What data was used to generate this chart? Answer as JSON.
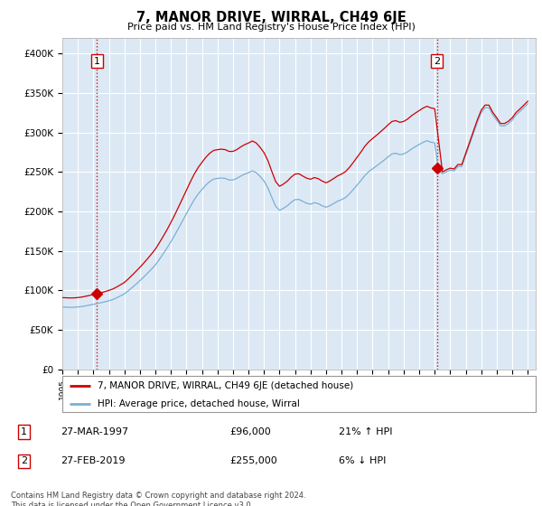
{
  "title": "7, MANOR DRIVE, WIRRAL, CH49 6JE",
  "subtitle": "Price paid vs. HM Land Registry's House Price Index (HPI)",
  "ylabel_ticks": [
    "£0",
    "£50K",
    "£100K",
    "£150K",
    "£200K",
    "£250K",
    "£300K",
    "£350K",
    "£400K"
  ],
  "ytick_values": [
    0,
    50000,
    100000,
    150000,
    200000,
    250000,
    300000,
    350000,
    400000
  ],
  "ylim": [
    0,
    420000
  ],
  "xlim_start": 1995.0,
  "xlim_end": 2025.5,
  "xtick_years": [
    1995,
    1996,
    1997,
    1998,
    1999,
    2000,
    2001,
    2002,
    2003,
    2004,
    2005,
    2006,
    2007,
    2008,
    2009,
    2010,
    2011,
    2012,
    2013,
    2014,
    2015,
    2016,
    2017,
    2018,
    2019,
    2020,
    2021,
    2022,
    2023,
    2024,
    2025
  ],
  "sale1_x": 1997.23,
  "sale1_y": 96000,
  "sale1_label": "1",
  "sale1_date": "27-MAR-1997",
  "sale1_price": "£96,000",
  "sale1_hpi": "21% ↑ HPI",
  "sale2_x": 2019.15,
  "sale2_y": 255000,
  "sale2_label": "2",
  "sale2_date": "27-FEB-2019",
  "sale2_price": "£255,000",
  "sale2_hpi": "6% ↓ HPI",
  "line1_color": "#cc0000",
  "line2_color": "#7bafd4",
  "bg_color": "#dce9f5",
  "grid_color": "#ffffff",
  "sale_marker_color": "#cc0000",
  "vline_color": "#cc0000",
  "legend_text1": "7, MANOR DRIVE, WIRRAL, CH49 6JE (detached house)",
  "legend_text2": "HPI: Average price, detached house, Wirral",
  "footer": "Contains HM Land Registry data © Crown copyright and database right 2024.\nThis data is licensed under the Open Government Licence v3.0.",
  "hpi_index": [
    100.0,
    99.8,
    99.5,
    99.7,
    100.1,
    100.8,
    101.9,
    103.1,
    104.3,
    105.6,
    107.0,
    108.4,
    110.1,
    112.0,
    114.8,
    117.9,
    121.2,
    126.0,
    131.3,
    136.7,
    142.3,
    148.2,
    154.4,
    160.9,
    167.7,
    176.3,
    185.3,
    194.7,
    204.9,
    215.5,
    226.9,
    238.3,
    249.8,
    261.3,
    272.1,
    281.2,
    288.6,
    295.6,
    301.3,
    305.2,
    306.3,
    307.0,
    306.3,
    303.8,
    303.9,
    306.4,
    310.1,
    313.2,
    315.6,
    318.4,
    315.6,
    309.5,
    302.1,
    291.1,
    276.2,
    261.8,
    255.2,
    258.3,
    262.4,
    268.0,
    272.3,
    272.7,
    269.5,
    266.5,
    265.0,
    267.4,
    265.8,
    262.5,
    260.1,
    262.7,
    266.2,
    269.8,
    272.3,
    275.6,
    281.4,
    288.3,
    295.7,
    303.0,
    311.0,
    317.2,
    321.8,
    326.3,
    331.0,
    335.8,
    340.9,
    345.6,
    346.7,
    344.4,
    345.6,
    348.8,
    353.4,
    357.2,
    360.7,
    364.2,
    366.8,
    364.5,
    363.5,
    319.7,
    313.8,
    317.0,
    319.7,
    318.4,
    325.5,
    325.5,
    343.2,
    360.9,
    378.6,
    396.3,
    411.7,
    419.9,
    419.9,
    408.2,
    399.8,
    390.6,
    390.6,
    394.2,
    399.8,
    408.2,
    413.8,
    419.9,
    426.0
  ],
  "hpi_base_value": 79000,
  "sale1_hpi_index": 104.3,
  "sale2_hpi_index": 345.6
}
